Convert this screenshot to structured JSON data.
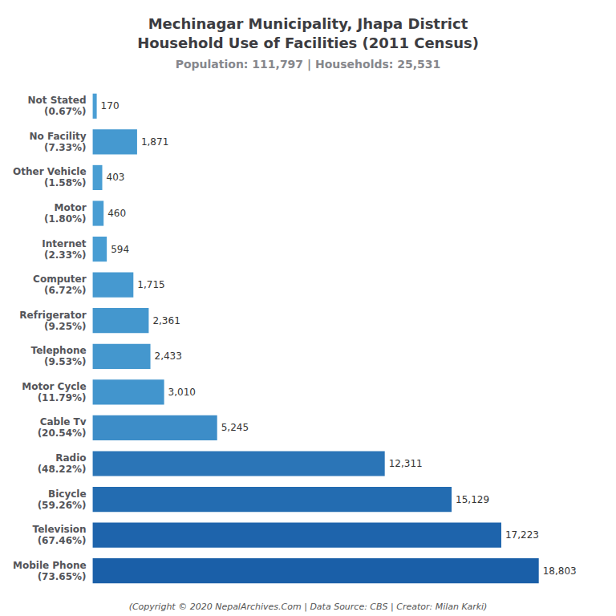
{
  "chart_data": {
    "type": "bar",
    "orientation": "horizontal",
    "title": "Mechinagar Municipality, Jhapa District\nHousehold Use of Facilities (2011 Census)",
    "subtitle": "Population: 111,797 | Households: 25,531",
    "annotations": [
      "(Copyright © 2020 NepalArchives.Com | Data Source: CBS | Creator: Milan Karki)"
    ],
    "categories": [
      "Mobile Phone\n(73.65%)",
      "Television\n(67.46%)",
      "Bicycle\n(59.26%)",
      "Radio\n(48.22%)",
      "Cable Tv\n(20.54%)",
      "Motor Cycle\n(11.79%)",
      "Telephone\n(9.53%)",
      "Refrigerator\n(9.25%)",
      "Computer\n(6.72%)",
      "Internet\n(2.33%)",
      "Motor\n(1.80%)",
      "Other Vehicle\n(1.58%)",
      "No Facility\n(7.33%)",
      "Not Stated\n(0.67%)"
    ],
    "values": [
      18803,
      17223,
      15129,
      12311,
      5245,
      3010,
      2433,
      2361,
      1715,
      594,
      460,
      403,
      1871,
      170
    ],
    "value_labels": [
      "18,803",
      "17,223",
      "15,129",
      "12,311",
      "5,245",
      "3,010",
      "2,433",
      "2,361",
      "1,715",
      "594",
      "460",
      "403",
      "1,871",
      "170"
    ],
    "colors": [
      "#1a5fa8",
      "#1e64ac",
      "#236cb1",
      "#2b75b7",
      "#3d8dc8",
      "#4295cd",
      "#4497ce",
      "#4497ce",
      "#4699d0",
      "#489dd3",
      "#499dd3",
      "#499ed3",
      "#4599d0",
      "#4a9ed4"
    ],
    "xlim": [
      0,
      21247.39
    ],
    "data_labels": true,
    "tick_labels": "y",
    "grid": false
  }
}
